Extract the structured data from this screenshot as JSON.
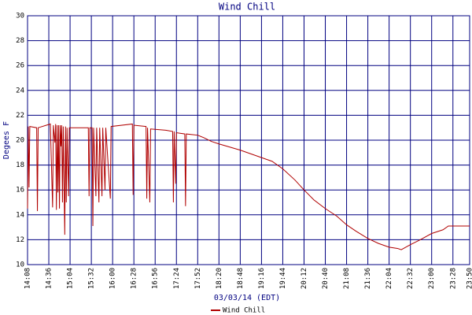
{
  "chart_data": {
    "type": "line",
    "title": "Wind Chill",
    "x_label": "03/03/14 (EDT)",
    "y_label": "Degees F",
    "x": [
      "14:08",
      "14:09",
      "14:10",
      "14:11",
      "14:20",
      "14:21",
      "14:22",
      "14:38",
      "14:41",
      "14:42",
      "14:44",
      "14:45",
      "14:46",
      "14:47",
      "14:48",
      "14:49",
      "14:50",
      "14:51",
      "14:52",
      "14:53",
      "14:54",
      "14:55",
      "14:57",
      "14:58",
      "14:59",
      "15:00",
      "15:02",
      "15:03",
      "15:28",
      "15:29",
      "15:30",
      "15:33",
      "15:34",
      "15:35",
      "15:38",
      "15:39",
      "15:42",
      "15:43",
      "15:46",
      "15:47",
      "15:50",
      "15:51",
      "15:57",
      "15:58",
      "16:26",
      "16:27",
      "16:28",
      "16:44",
      "16:45",
      "16:46",
      "16:49",
      "16:50",
      "17:10",
      "17:19",
      "17:20",
      "17:21",
      "17:23",
      "17:24",
      "17:35",
      "17:36",
      "17:37",
      "17:52",
      "18:00",
      "18:10",
      "18:20",
      "18:48",
      "19:16",
      "19:30",
      "19:44",
      "20:00",
      "20:12",
      "20:25",
      "20:40",
      "20:55",
      "21:08",
      "21:20",
      "21:36",
      "21:50",
      "22:04",
      "22:15",
      "22:20",
      "22:32",
      "22:45",
      "23:00",
      "23:15",
      "23:22",
      "23:50"
    ],
    "series": [
      {
        "name": "Wind Chill",
        "color": "#b00000",
        "values": [
          14.5,
          21.1,
          16.2,
          21.1,
          21.0,
          14.3,
          21.0,
          21.3,
          14.6,
          21.2,
          19.8,
          21.3,
          14.4,
          21.2,
          15.8,
          21.2,
          14.5,
          21.2,
          19.5,
          21.2,
          15.0,
          21.1,
          12.4,
          21.1,
          15.0,
          21.0,
          15.5,
          21.0,
          21.0,
          15.5,
          21.0,
          21.0,
          13.1,
          21.0,
          15.5,
          21.0,
          15.0,
          21.0,
          15.5,
          21.0,
          16.0,
          21.0,
          15.3,
          21.1,
          21.3,
          15.6,
          21.2,
          21.1,
          15.3,
          21.0,
          15.0,
          20.9,
          20.8,
          20.7,
          15.0,
          20.7,
          16.5,
          20.6,
          20.5,
          14.7,
          20.5,
          20.4,
          20.2,
          19.9,
          19.7,
          19.2,
          18.6,
          18.3,
          17.7,
          16.8,
          16.0,
          15.2,
          14.5,
          13.9,
          13.2,
          12.7,
          12.1,
          11.7,
          11.4,
          11.3,
          11.2,
          11.6,
          12.0,
          12.5,
          12.8,
          13.1,
          13.1
        ]
      }
    ],
    "xlim": [
      "14:08",
      "23:50"
    ],
    "xticks": [
      "14:08",
      "14:36",
      "15:04",
      "15:32",
      "16:00",
      "16:28",
      "16:56",
      "17:24",
      "17:52",
      "18:20",
      "18:48",
      "19:16",
      "19:44",
      "20:12",
      "20:40",
      "21:08",
      "21:36",
      "22:04",
      "22:32",
      "23:00",
      "23:28",
      "23:50"
    ],
    "ylim": [
      10,
      30
    ],
    "yticks": [
      10,
      12,
      14,
      16,
      18,
      20,
      22,
      24,
      26,
      28,
      30
    ],
    "grid": true
  }
}
